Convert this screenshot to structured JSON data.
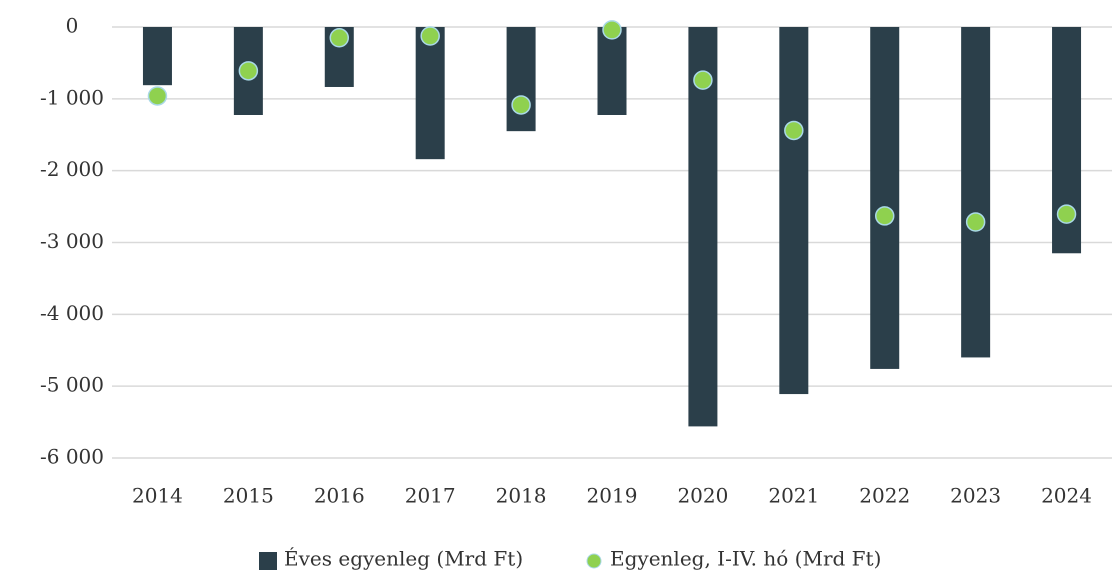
{
  "chart_data": {
    "type": "bar_dot",
    "categories": [
      "2014",
      "2015",
      "2016",
      "2017",
      "2018",
      "2019",
      "2020",
      "2021",
      "2022",
      "2023",
      "2024"
    ],
    "series": [
      {
        "name": "Éves egyenleg (Mrd Ft)",
        "color": "#2b3f4a",
        "type": "bar",
        "values": [
          -810,
          -1225,
          -835,
          -1840,
          -1450,
          -1225,
          -5560,
          -5110,
          -4760,
          -4600,
          -3150
        ]
      },
      {
        "name": "Egyenleg, I-IV. hó (Mrd Ft)",
        "color": "#8fd14f",
        "type": "dot",
        "values": [
          -960,
          -610,
          -150,
          -125,
          -1085,
          -40,
          -740,
          -1440,
          -2630,
          -2715,
          -2605
        ]
      }
    ],
    "ylim": [
      0,
      -6000
    ],
    "yticks": [
      0,
      {
        "value": -1000,
        "label": "-1 000"
      },
      {
        "value": -2000,
        "label": "-2 000"
      },
      {
        "value": -3000,
        "label": "-3 000"
      },
      {
        "value": -4000,
        "label": "-4 000"
      },
      {
        "value": -5000,
        "label": "-5 000"
      },
      {
        "value": -6000,
        "label": "-6 000"
      }
    ],
    "grid": true,
    "legend": "bottom"
  }
}
